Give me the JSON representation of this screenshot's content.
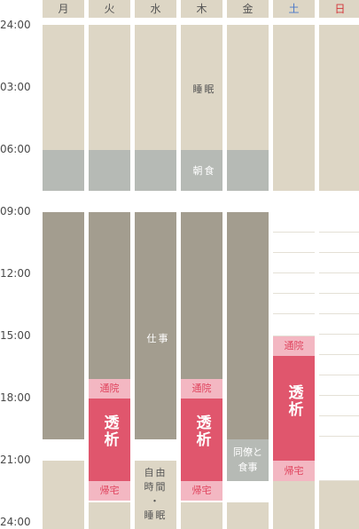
{
  "days": [
    "月",
    "火",
    "水",
    "木",
    "金",
    "土",
    "日"
  ],
  "time_labels": [
    "24:00",
    "03:00",
    "06:00",
    "09:00",
    "12:00",
    "15:00",
    "18:00",
    "21:00",
    "24:00"
  ],
  "labels": {
    "sleep": "睡眠",
    "breakfast": "朝食",
    "work": "仕事",
    "tsuin": "通院",
    "toseki": "透析",
    "kitaku": "帰宅",
    "friend": "同僚と\n食事",
    "free": "自由\n時間\n・\n睡眠"
  },
  "colors": {
    "sleep": "#ddd6c5",
    "breakfast": "#b6bab5",
    "work": "#a39d8f",
    "tsuin": "#f3b7c2",
    "toseki": "#e0566d",
    "saturday": "#4a78c9",
    "sunday": "#d4363a"
  }
}
